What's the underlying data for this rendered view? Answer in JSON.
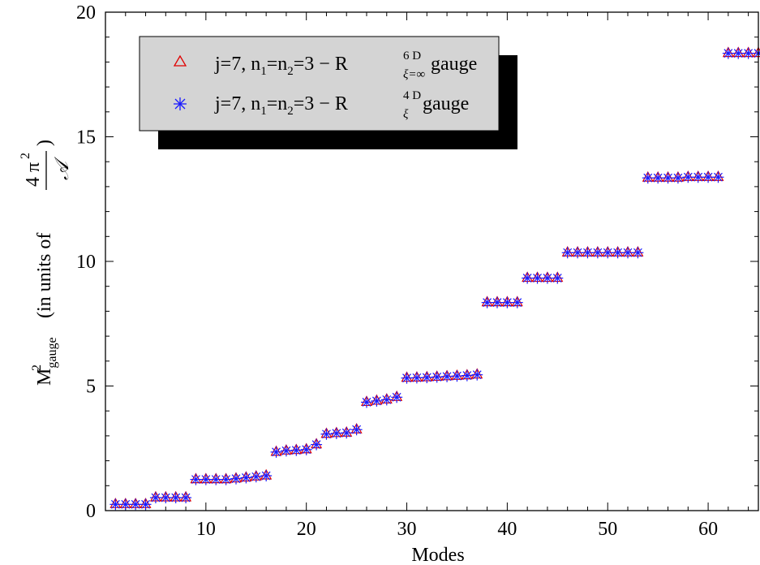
{
  "chart_data": {
    "type": "scatter",
    "xlabel": "Modes",
    "ylabel": {
      "main": "M",
      "main_sup": "2",
      "main_sub": "gauge",
      "units_prefix": "(in units of",
      "frac_num": "4 π",
      "frac_num_sup": "2",
      "frac_den": "𝒜",
      "units_suffix": ")"
    },
    "xlim": [
      0,
      65
    ],
    "ylim": [
      0,
      20
    ],
    "x_ticks": [
      10,
      20,
      30,
      40,
      50,
      60
    ],
    "y_ticks": [
      0,
      5,
      10,
      15,
      20
    ],
    "grid": false,
    "legend_position": "top-left",
    "legend": [
      {
        "series": 0,
        "prefix": "j=7, n",
        "s1": "1",
        "mid": "=n",
        "s2": "2",
        "mid2": "=3 − R",
        "sup": "6 D",
        "sub": "ξ=∞",
        "suffix": " gauge"
      },
      {
        "series": 1,
        "prefix": "j=7, n",
        "s1": "1",
        "mid": "=n",
        "s2": "2",
        "mid2": "=3 − R",
        "sup": "4 D",
        "sub": "ξ",
        "suffix": " gauge"
      }
    ],
    "x": [
      1,
      2,
      3,
      4,
      5,
      6,
      7,
      8,
      9,
      10,
      11,
      12,
      13,
      14,
      15,
      16,
      17,
      18,
      19,
      20,
      21,
      22,
      23,
      24,
      25,
      26,
      27,
      28,
      29,
      30,
      31,
      32,
      33,
      34,
      35,
      36,
      37,
      38,
      39,
      40,
      41,
      42,
      43,
      44,
      45,
      46,
      47,
      48,
      49,
      50,
      51,
      52,
      53,
      54,
      55,
      56,
      57,
      58,
      59,
      60,
      61,
      62,
      63,
      64,
      65
    ],
    "series": [
      {
        "marker": "triangle",
        "color": "#e00000",
        "values": [
          0.25,
          0.25,
          0.25,
          0.25,
          0.52,
          0.52,
          0.52,
          0.52,
          1.25,
          1.25,
          1.25,
          1.25,
          1.28,
          1.32,
          1.36,
          1.4,
          2.35,
          2.4,
          2.42,
          2.45,
          2.65,
          3.07,
          3.1,
          3.12,
          3.25,
          4.35,
          4.4,
          4.45,
          4.55,
          5.32,
          5.33,
          5.34,
          5.36,
          5.38,
          5.4,
          5.42,
          5.45,
          8.35,
          8.35,
          8.35,
          8.35,
          9.33,
          9.33,
          9.33,
          9.33,
          10.35,
          10.35,
          10.35,
          10.35,
          10.35,
          10.35,
          10.35,
          10.35,
          13.35,
          13.35,
          13.35,
          13.35,
          13.38,
          13.38,
          13.38,
          13.38,
          18.35,
          18.35,
          18.35,
          18.35
        ]
      },
      {
        "marker": "asterisk",
        "color": "#1a1aff",
        "values": [
          0.25,
          0.25,
          0.25,
          0.25,
          0.52,
          0.52,
          0.52,
          0.52,
          1.25,
          1.25,
          1.25,
          1.25,
          1.28,
          1.32,
          1.36,
          1.4,
          2.35,
          2.4,
          2.42,
          2.45,
          2.65,
          3.07,
          3.1,
          3.12,
          3.25,
          4.35,
          4.4,
          4.45,
          4.55,
          5.32,
          5.33,
          5.34,
          5.36,
          5.38,
          5.4,
          5.42,
          5.45,
          8.35,
          8.35,
          8.35,
          8.35,
          9.33,
          9.33,
          9.33,
          9.33,
          10.35,
          10.35,
          10.35,
          10.35,
          10.35,
          10.35,
          10.35,
          10.35,
          13.35,
          13.35,
          13.35,
          13.35,
          13.38,
          13.38,
          13.38,
          13.38,
          18.35,
          18.35,
          18.35,
          18.35
        ]
      }
    ]
  }
}
